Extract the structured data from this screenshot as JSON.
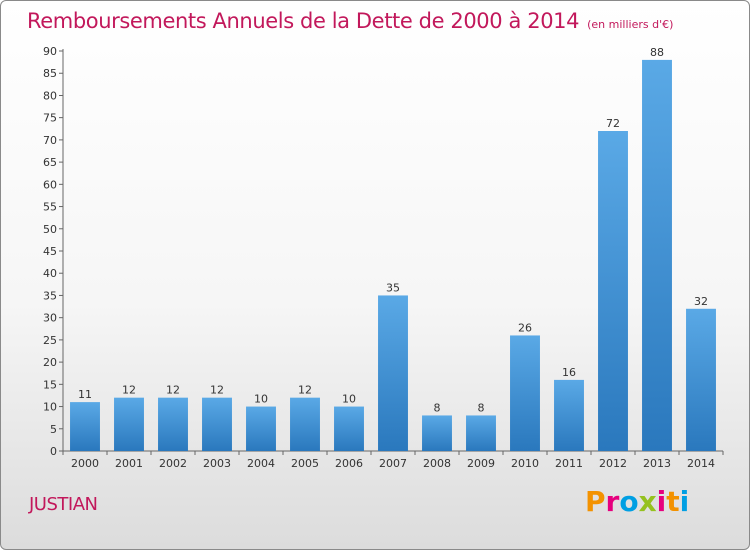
{
  "title": "Remboursements Annuels de la Dette de 2000 à 2014",
  "unit": "(en milliers d'€)",
  "commune": "JUSTIAN",
  "brand": "Proxiti",
  "colors": {
    "title": "#c2185b",
    "bar_light": "#5aa9e6",
    "bar_dark": "#2a78bd",
    "brand": [
      "#f39200",
      "#e6007e",
      "#009fe3",
      "#95c11f",
      "#e6007e",
      "#f39200",
      "#009fe3"
    ]
  },
  "chart_data": {
    "type": "bar",
    "title": "Remboursements Annuels de la Dette de 2000 à 2014",
    "ylabel": "",
    "xlabel": "",
    "categories": [
      "2000",
      "2001",
      "2002",
      "2003",
      "2004",
      "2005",
      "2006",
      "2007",
      "2008",
      "2009",
      "2010",
      "2011",
      "2012",
      "2013",
      "2014"
    ],
    "values": [
      11,
      12,
      12,
      12,
      10,
      12,
      10,
      35,
      8,
      8,
      26,
      16,
      72,
      88,
      32
    ],
    "ylim": [
      0,
      90
    ],
    "yticks": [
      0,
      5,
      10,
      15,
      20,
      25,
      30,
      35,
      40,
      45,
      50,
      55,
      60,
      65,
      70,
      75,
      80,
      85,
      90
    ],
    "grid": false
  }
}
